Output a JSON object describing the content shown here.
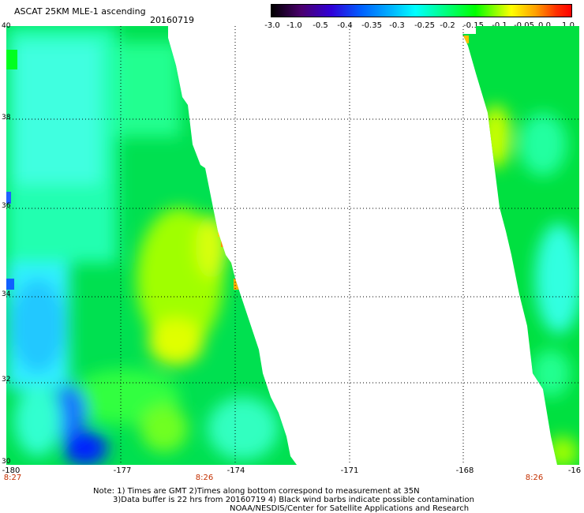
{
  "header": {
    "title": "ASCAT 25KM MLE-1 ascending",
    "date": "20160719"
  },
  "colorbar": {
    "ticks": [
      "-3.0",
      "-1.0",
      "-0.5",
      "-0.4",
      "-0.35",
      "-0.3",
      "-0.25",
      "-0.2",
      "-0.15",
      "-0.1",
      "-0.05",
      "0.0",
      "1.0"
    ],
    "colors": [
      "#000000",
      "#4b006e",
      "#3000d8",
      "#0060ff",
      "#00b4ff",
      "#00ffff",
      "#00ff80",
      "#00ff00",
      "#80ff00",
      "#ffff00",
      "#ffa000",
      "#ff0000"
    ]
  },
  "map": {
    "lon_labels": [
      "-180",
      "-177",
      "-174",
      "-171",
      "-168",
      "-16"
    ],
    "lat_labels": [
      "40",
      "38",
      "36",
      "34",
      "32",
      "30"
    ],
    "swath_times": [
      "8:27",
      "8:26",
      "8:26"
    ]
  },
  "footer": {
    "note1": "Note: 1) Times are GMT 2)Times along bottom correspond to measurement at 35N",
    "note2": "3)Data buffer is 22 hrs from 20160719 4) Black wind barbs indicate possible contamination",
    "note3": "NOAA/NESDIS/Center for Satellite Applications and Research"
  }
}
